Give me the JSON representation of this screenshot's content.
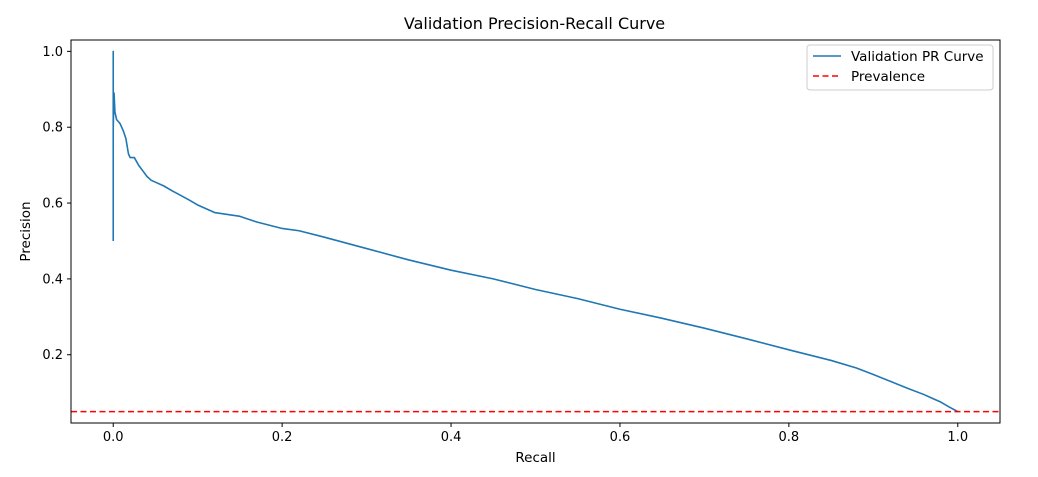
{
  "chart_data": {
    "type": "line",
    "title": "Validation Precision-Recall Curve",
    "xlabel": "Recall",
    "ylabel": "Precision",
    "xlim": [
      -0.05,
      1.05
    ],
    "ylim": [
      0.02,
      1.03
    ],
    "xticks": [
      0.0,
      0.2,
      0.4,
      0.6,
      0.8,
      1.0
    ],
    "xtick_labels": [
      "0.0",
      "0.2",
      "0.4",
      "0.6",
      "0.8",
      "1.0"
    ],
    "yticks": [
      0.2,
      0.4,
      0.6,
      0.8,
      1.0
    ],
    "ytick_labels": [
      "0.2",
      "0.4",
      "0.6",
      "0.8",
      "1.0"
    ],
    "grid": false,
    "legend_position": "top-right",
    "series": [
      {
        "name": "Validation PR Curve",
        "color": "#1f77b4",
        "style": "solid",
        "x": [
          0.0,
          0.0,
          0.0,
          0.0,
          0.0,
          0.001,
          0.002,
          0.003,
          0.004,
          0.006,
          0.008,
          0.01,
          0.012,
          0.015,
          0.018,
          0.02,
          0.025,
          0.03,
          0.035,
          0.04,
          0.045,
          0.05,
          0.06,
          0.07,
          0.08,
          0.09,
          0.1,
          0.12,
          0.15,
          0.17,
          0.2,
          0.22,
          0.25,
          0.3,
          0.35,
          0.4,
          0.45,
          0.5,
          0.55,
          0.6,
          0.65,
          0.7,
          0.75,
          0.8,
          0.85,
          0.88,
          0.9,
          0.92,
          0.94,
          0.96,
          0.97,
          0.98,
          0.99,
          1.0
        ],
        "y": [
          0.5,
          1.0,
          0.55,
          0.93,
          0.8,
          0.89,
          0.84,
          0.83,
          0.82,
          0.815,
          0.81,
          0.8,
          0.79,
          0.77,
          0.73,
          0.72,
          0.72,
          0.7,
          0.685,
          0.67,
          0.66,
          0.655,
          0.645,
          0.632,
          0.62,
          0.608,
          0.595,
          0.575,
          0.565,
          0.55,
          0.533,
          0.527,
          0.51,
          0.48,
          0.45,
          0.423,
          0.4,
          0.372,
          0.348,
          0.32,
          0.296,
          0.27,
          0.242,
          0.213,
          0.185,
          0.165,
          0.148,
          0.13,
          0.112,
          0.095,
          0.085,
          0.075,
          0.062,
          0.05
        ]
      },
      {
        "name": "Prevalence",
        "color": "#ff0000",
        "style": "dashed",
        "y_constant": 0.05
      }
    ]
  }
}
